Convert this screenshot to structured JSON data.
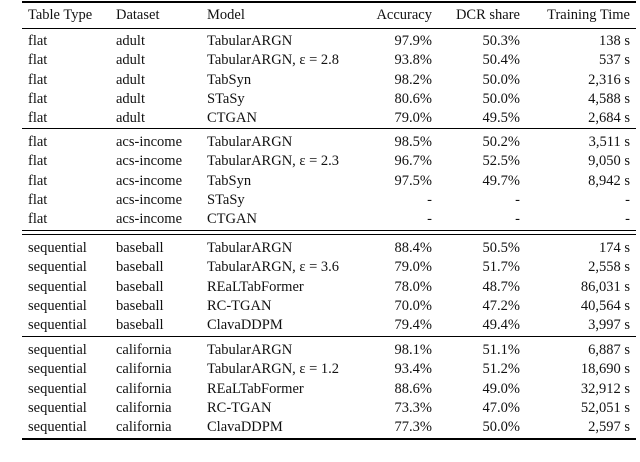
{
  "table": {
    "header": [
      "Table Type",
      "Dataset",
      "Model",
      "Accuracy",
      "DCR share",
      "Training Time"
    ],
    "groups": [
      [
        [
          "flat",
          "adult",
          "TabularARGN",
          "97.9%",
          "50.3%",
          "138 s"
        ],
        [
          "flat",
          "adult",
          "TabularARGN, ε = 2.8",
          "93.8%",
          "50.4%",
          "537 s"
        ],
        [
          "flat",
          "adult",
          "TabSyn",
          "98.2%",
          "50.0%",
          "2,316 s"
        ],
        [
          "flat",
          "adult",
          "STaSy",
          "80.6%",
          "50.0%",
          "4,588 s"
        ],
        [
          "flat",
          "adult",
          "CTGAN",
          "79.0%",
          "49.5%",
          "2,684 s"
        ]
      ],
      [
        [
          "flat",
          "acs-income",
          "TabularARGN",
          "98.5%",
          "50.2%",
          "3,511 s"
        ],
        [
          "flat",
          "acs-income",
          "TabularARGN, ε = 2.3",
          "96.7%",
          "52.5%",
          "9,050 s"
        ],
        [
          "flat",
          "acs-income",
          "TabSyn",
          "97.5%",
          "49.7%",
          "8,942 s"
        ],
        [
          "flat",
          "acs-income",
          "STaSy",
          "-",
          "-",
          "-"
        ],
        [
          "flat",
          "acs-income",
          "CTGAN",
          "-",
          "-",
          "-"
        ]
      ],
      [
        [
          "sequential",
          "baseball",
          "TabularARGN",
          "88.4%",
          "50.5%",
          "174 s"
        ],
        [
          "sequential",
          "baseball",
          "TabularARGN, ε = 3.6",
          "79.0%",
          "51.7%",
          "2,558 s"
        ],
        [
          "sequential",
          "baseball",
          "REaLTabFormer",
          "78.0%",
          "48.7%",
          "86,031 s"
        ],
        [
          "sequential",
          "baseball",
          "RC-TGAN",
          "70.0%",
          "47.2%",
          "40,564 s"
        ],
        [
          "sequential",
          "baseball",
          "ClavaDDPM",
          "79.4%",
          "49.4%",
          "3,997 s"
        ]
      ],
      [
        [
          "sequential",
          "california",
          "TabularARGN",
          "98.1%",
          "51.1%",
          "6,887 s"
        ],
        [
          "sequential",
          "california",
          "TabularARGN, ε = 1.2",
          "93.4%",
          "51.2%",
          "18,690 s"
        ],
        [
          "sequential",
          "california",
          "REaLTabFormer",
          "88.6%",
          "49.0%",
          "32,912 s"
        ],
        [
          "sequential",
          "california",
          "RC-TGAN",
          "73.3%",
          "47.0%",
          "52,051 s"
        ],
        [
          "sequential",
          "california",
          "ClavaDDPM",
          "77.3%",
          "50.0%",
          "2,597 s"
        ]
      ]
    ]
  }
}
